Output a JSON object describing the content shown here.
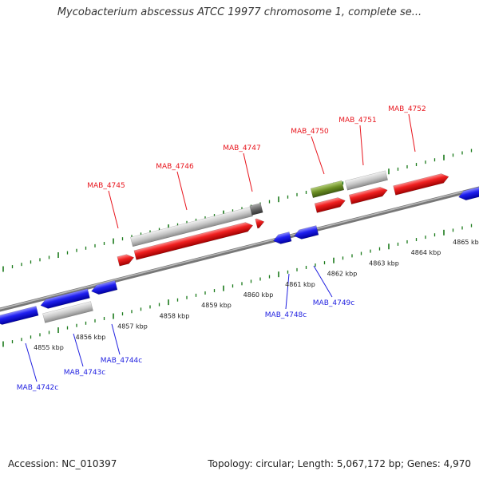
{
  "title": "Mycobacterium abscessus ATCC 19977 chromosome 1, complete se...",
  "footer": {
    "accession": "Accession: NC_010397",
    "summary": "Topology: circular; Length: 5,067,172 bp; Genes: 4,970"
  },
  "colors": {
    "forward": "#e8141c",
    "reverse": "#1f1fe0",
    "gray_feature": "#c8c8c8",
    "green_feature": "#6b8e23",
    "tick": "#1a7a1a",
    "backbone": "#777777"
  },
  "scale_labels": [
    "4855 kbp",
    "4856 kbp",
    "4857 kbp",
    "4858 kbp",
    "4859 kbp",
    "4860 kbp",
    "4861 kbp",
    "4862 kbp",
    "4863 kbp",
    "4864 kbp",
    "4865 kbp"
  ],
  "forward_genes": [
    "MAB_4745",
    "MAB_4746",
    "MAB_4747",
    "MAB_4750",
    "MAB_4751",
    "MAB_4752"
  ],
  "reverse_genes": [
    "MAB_4742c",
    "MAB_4743c",
    "MAB_4744c",
    "MAB_4748c",
    "MAB_4749c"
  ]
}
